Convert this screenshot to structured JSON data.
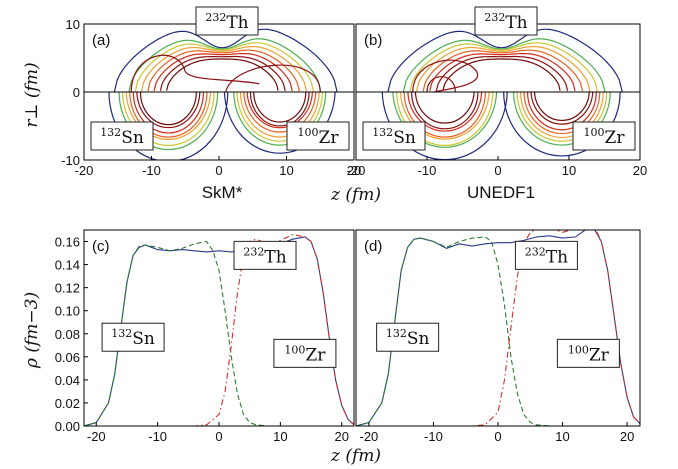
{
  "chart_data": [
    {
      "panel": "(a)",
      "type": "contour",
      "nuclei": {
        "top": "232",
        "top_sym": "Th",
        "left": "132",
        "left_sym": "Sn",
        "right": "100",
        "right_sym": "Zr"
      },
      "xlabel": "z (fm)",
      "ylabel": "r⊥ (fm)",
      "xlim": [
        -20,
        20
      ],
      "ylim": [
        -10,
        10
      ],
      "xticks": [
        "-20",
        "-10",
        "0",
        "10",
        "20"
      ],
      "yticks": [
        "10",
        "0",
        "-10"
      ],
      "subtitle": "SkM*"
    },
    {
      "panel": "(b)",
      "type": "contour",
      "nuclei": {
        "top": "232",
        "top_sym": "Th",
        "left": "132",
        "left_sym": "Sn",
        "right": "100",
        "right_sym": "Zr"
      },
      "xlabel": "z (fm)",
      "xlim": [
        -20,
        20
      ],
      "ylim": [
        -10,
        10
      ],
      "xticks": [
        "-20",
        "-10",
        "0",
        "10",
        "20"
      ],
      "subtitle": "UNEDF1"
    },
    {
      "panel": "(c)",
      "type": "line",
      "xlabel": "z (fm)",
      "ylabel": "ρ (fm−3)",
      "xlim": [
        -22,
        22
      ],
      "ylim": [
        0,
        0.17
      ],
      "xticks": [
        "-20",
        "-10",
        "0",
        "10",
        "20"
      ],
      "yticks": [
        "0.00",
        "0.02",
        "0.04",
        "0.06",
        "0.08",
        "0.10",
        "0.12",
        "0.14",
        "0.16"
      ],
      "labels": {
        "th": "232",
        "th_sym": "Th",
        "sn": "132",
        "sn_sym": "Sn",
        "zr": "100",
        "zr_sym": "Zr"
      },
      "series": [
        {
          "id": "th",
          "style": "solid",
          "color": "#2b3a8c",
          "x": [
            -22,
            -20,
            -18,
            -17,
            -16,
            -15,
            -14,
            -13,
            -12,
            -11,
            -10,
            -8,
            -6,
            -4,
            -2,
            0,
            2,
            4,
            6,
            8,
            10,
            12,
            14,
            15,
            16,
            17,
            18,
            19,
            20,
            21,
            22
          ],
          "y": [
            0.0,
            0.003,
            0.02,
            0.045,
            0.085,
            0.125,
            0.148,
            0.155,
            0.157,
            0.155,
            0.153,
            0.152,
            0.153,
            0.152,
            0.151,
            0.152,
            0.151,
            0.153,
            0.154,
            0.157,
            0.158,
            0.162,
            0.164,
            0.16,
            0.145,
            0.115,
            0.075,
            0.04,
            0.018,
            0.006,
            0.001
          ]
        },
        {
          "id": "sn",
          "style": "dashed",
          "color": "#2e7d32",
          "x": [
            -22,
            -20,
            -18,
            -17,
            -16,
            -15,
            -14,
            -13,
            -12,
            -10,
            -8,
            -6,
            -4,
            -2,
            -1,
            0,
            1,
            2,
            3,
            4,
            5,
            6,
            8,
            10,
            22
          ],
          "y": [
            0.0,
            0.003,
            0.02,
            0.045,
            0.085,
            0.125,
            0.148,
            0.156,
            0.157,
            0.155,
            0.152,
            0.154,
            0.158,
            0.16,
            0.152,
            0.135,
            0.1,
            0.06,
            0.028,
            0.01,
            0.003,
            0.001,
            0.0,
            0.0,
            0.0
          ]
        },
        {
          "id": "zr",
          "style": "dashdot",
          "color": "#d32f2f",
          "x": [
            -22,
            -4,
            -2,
            0,
            1,
            2,
            3,
            4,
            5,
            6,
            7,
            8,
            10,
            12,
            14,
            15,
            16,
            17,
            18,
            19,
            20,
            21,
            22
          ],
          "y": [
            0.0,
            0.0,
            0.001,
            0.01,
            0.03,
            0.07,
            0.115,
            0.148,
            0.16,
            0.162,
            0.16,
            0.158,
            0.161,
            0.166,
            0.164,
            0.16,
            0.145,
            0.115,
            0.075,
            0.04,
            0.018,
            0.006,
            0.001
          ]
        }
      ]
    },
    {
      "panel": "(d)",
      "type": "line",
      "xlabel": "z (fm)",
      "xlim": [
        -22,
        22
      ],
      "ylim": [
        0,
        0.17
      ],
      "xticks": [
        "-20",
        "-10",
        "0",
        "10",
        "20"
      ],
      "labels": {
        "th": "232",
        "th_sym": "Th",
        "sn": "132",
        "sn_sym": "Sn",
        "zr": "100",
        "zr_sym": "Zr"
      },
      "series": [
        {
          "id": "th",
          "style": "solid",
          "color": "#2b3a8c",
          "x": [
            -22,
            -20,
            -18,
            -17,
            -16,
            -15,
            -14,
            -13,
            -12,
            -10,
            -8,
            -6,
            -4,
            -2,
            0,
            2,
            4,
            6,
            8,
            10,
            12,
            14,
            15,
            16,
            17,
            18,
            19,
            20,
            21,
            22
          ],
          "y": [
            0.0,
            0.003,
            0.02,
            0.045,
            0.09,
            0.135,
            0.155,
            0.162,
            0.163,
            0.16,
            0.154,
            0.158,
            0.156,
            0.158,
            0.159,
            0.159,
            0.161,
            0.164,
            0.165,
            0.163,
            0.164,
            0.172,
            0.17,
            0.16,
            0.135,
            0.095,
            0.055,
            0.025,
            0.008,
            0.002
          ]
        },
        {
          "id": "sn",
          "style": "dashed",
          "color": "#2e7d32",
          "x": [
            -22,
            -20,
            -18,
            -17,
            -16,
            -15,
            -14,
            -13,
            -12,
            -10,
            -8,
            -6,
            -4,
            -2,
            -1,
            0,
            1,
            2,
            3,
            4,
            5,
            6,
            8,
            22
          ],
          "y": [
            0.0,
            0.003,
            0.02,
            0.045,
            0.09,
            0.135,
            0.155,
            0.162,
            0.163,
            0.16,
            0.155,
            0.16,
            0.163,
            0.164,
            0.16,
            0.14,
            0.105,
            0.06,
            0.028,
            0.01,
            0.003,
            0.001,
            0.0,
            0.0
          ]
        },
        {
          "id": "zr",
          "style": "dashdot",
          "color": "#d32f2f",
          "x": [
            -22,
            -4,
            -2,
            0,
            1,
            2,
            3,
            4,
            5,
            6,
            8,
            10,
            12,
            14,
            15,
            16,
            17,
            18,
            19,
            20,
            21,
            22
          ],
          "y": [
            0.0,
            0.0,
            0.001,
            0.012,
            0.04,
            0.085,
            0.13,
            0.158,
            0.168,
            0.171,
            0.172,
            0.168,
            0.171,
            0.176,
            0.172,
            0.16,
            0.135,
            0.095,
            0.055,
            0.025,
            0.008,
            0.002
          ]
        }
      ]
    }
  ]
}
